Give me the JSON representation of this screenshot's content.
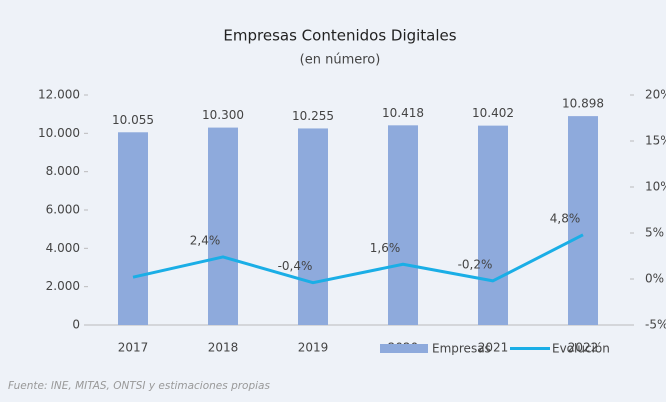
{
  "chart_data": {
    "type": "bar_line",
    "title": "Empresas Contenidos Digitales",
    "subtitle": "(en número)",
    "source": "Fuente: INE, MITAS, ONTSI y estimaciones propias",
    "categories": [
      "2017",
      "2018",
      "2019",
      "2020",
      "2021",
      "2022"
    ],
    "series": [
      {
        "name": "Empresas",
        "color": "#8eaadc",
        "kind": "bar",
        "axis": "y",
        "values": [
          10055,
          10300,
          10255,
          10418,
          10402,
          10898
        ],
        "value_labels": [
          "10.055",
          "10.300",
          "10.255",
          "10.418",
          "10.402",
          "10.898"
        ]
      },
      {
        "name": "Evolución",
        "color": "#1aaee6",
        "kind": "line",
        "axis": "y2",
        "values": [
          0.2,
          2.4,
          -0.4,
          1.6,
          -0.2,
          4.8
        ],
        "value_labels": [
          null,
          "2,4%",
          "-0,4%",
          "1,6%",
          "-0,2%",
          "4,8%"
        ]
      }
    ],
    "ylim": [
      0,
      12000
    ],
    "yticks": [
      0,
      {
        "value": 2000,
        "label": "2.000"
      },
      {
        "value": 4000,
        "label": "4.000"
      },
      {
        "value": 6000,
        "label": "6.000"
      },
      {
        "value": 8000,
        "label": "8.000"
      },
      {
        "value": 10000,
        "label": "10.000"
      },
      {
        "value": 12000,
        "label": "12.000"
      }
    ],
    "y2lim": [
      -5,
      20
    ],
    "y2ticks": [
      {
        "value": -5,
        "label": "-5%"
      },
      {
        "value": 0,
        "label": "0%"
      },
      {
        "value": 5,
        "label": "5%"
      },
      {
        "value": 10,
        "label": "10%"
      },
      {
        "value": 15,
        "label": "15%"
      },
      {
        "value": 20,
        "label": "20%"
      }
    ],
    "legend": "bottom"
  }
}
